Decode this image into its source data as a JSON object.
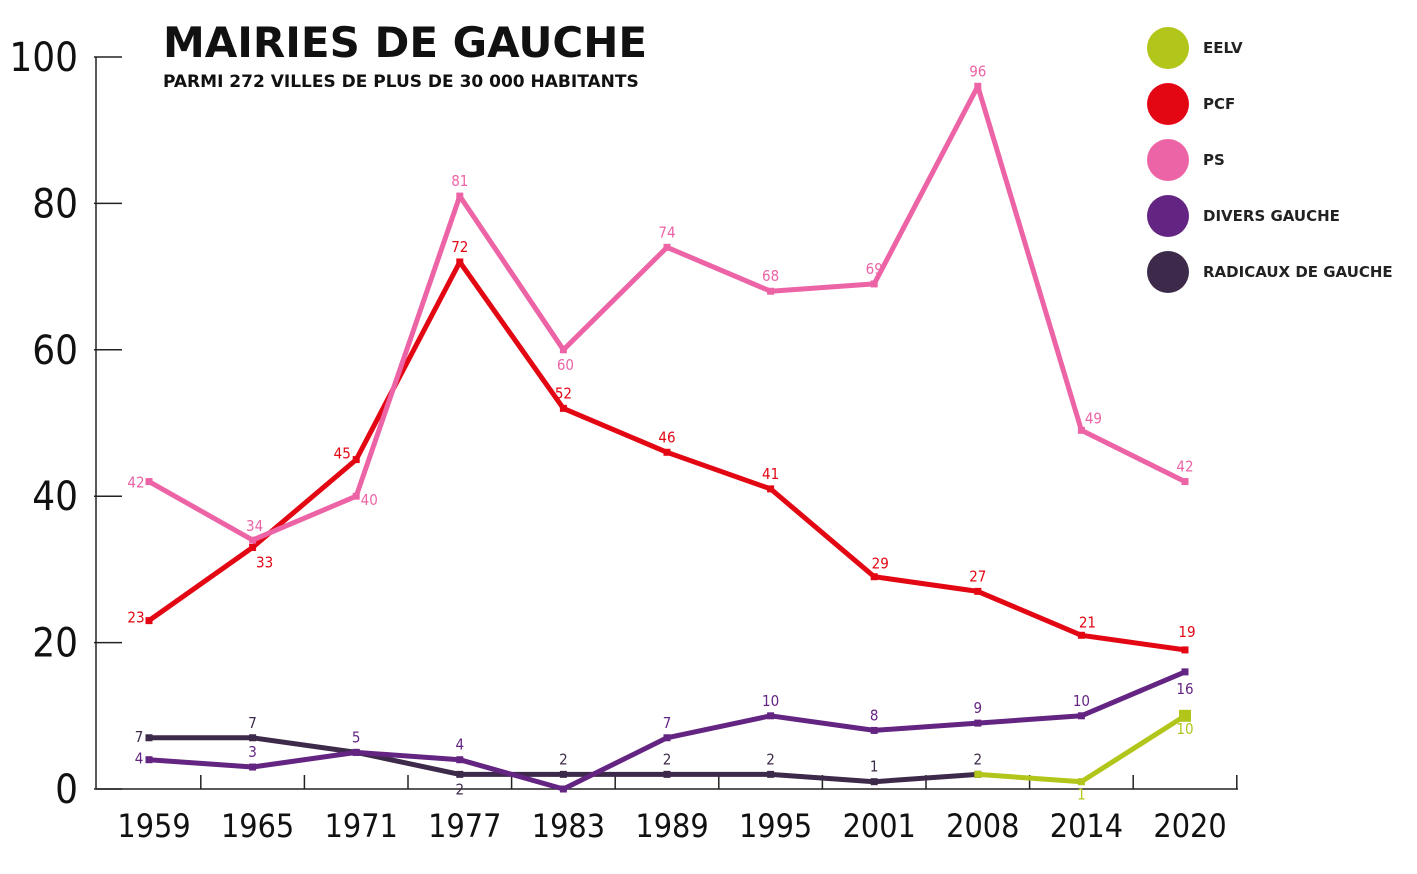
{
  "chart_data": {
    "type": "line",
    "title": "MAIRIES DE GAUCHE",
    "subtitle": "PARMI 272 VILLES DE PLUS DE 30 000 HABITANTS",
    "xlabel": "",
    "ylabel": "",
    "categories": [
      "1959",
      "1965",
      "1971",
      "1977",
      "1983",
      "1989",
      "1995",
      "2001",
      "2008",
      "2014",
      "2020"
    ],
    "ylim": [
      0,
      100
    ],
    "yticks": [
      0,
      20,
      40,
      60,
      80,
      100
    ],
    "grid": false,
    "legend_position": "top-right",
    "series": [
      {
        "name": "EELV",
        "color": "#b1c51b",
        "values": [
          null,
          null,
          null,
          null,
          null,
          null,
          null,
          null,
          2,
          1,
          10
        ],
        "labels": [
          null,
          null,
          null,
          null,
          null,
          null,
          null,
          null,
          null,
          "1",
          "10"
        ]
      },
      {
        "name": "PCF",
        "color": "#e30613",
        "values": [
          23,
          33,
          45,
          72,
          52,
          46,
          41,
          29,
          27,
          21,
          19
        ],
        "labels": [
          "23",
          "33",
          "45",
          "72",
          "52",
          "46",
          "41",
          "29",
          "27",
          "21",
          "19"
        ]
      },
      {
        "name": "PS",
        "color": "#ec64a6",
        "values": [
          42,
          34,
          40,
          81,
          60,
          74,
          68,
          69,
          96,
          49,
          42
        ],
        "labels": [
          "42",
          "34",
          "40",
          "81",
          "60",
          "74",
          "68",
          "69",
          "96",
          "49",
          "42"
        ]
      },
      {
        "name": "DIVERS GAUCHE",
        "color": "#642482",
        "values": [
          4,
          3,
          5,
          4,
          0,
          7,
          10,
          8,
          9,
          10,
          16
        ],
        "labels": [
          "4",
          "3",
          "5",
          "4",
          null,
          "7",
          "10",
          "8",
          "9",
          "10",
          "16"
        ]
      },
      {
        "name": "RADICAUX DE GAUCHE",
        "color": "#3d2a4a",
        "values": [
          7,
          7,
          5,
          2,
          2,
          2,
          2,
          1,
          2,
          null,
          null
        ],
        "labels": [
          "7",
          "7",
          null,
          "2",
          "2",
          "2",
          "2",
          "1",
          "2",
          null,
          null
        ]
      }
    ]
  }
}
